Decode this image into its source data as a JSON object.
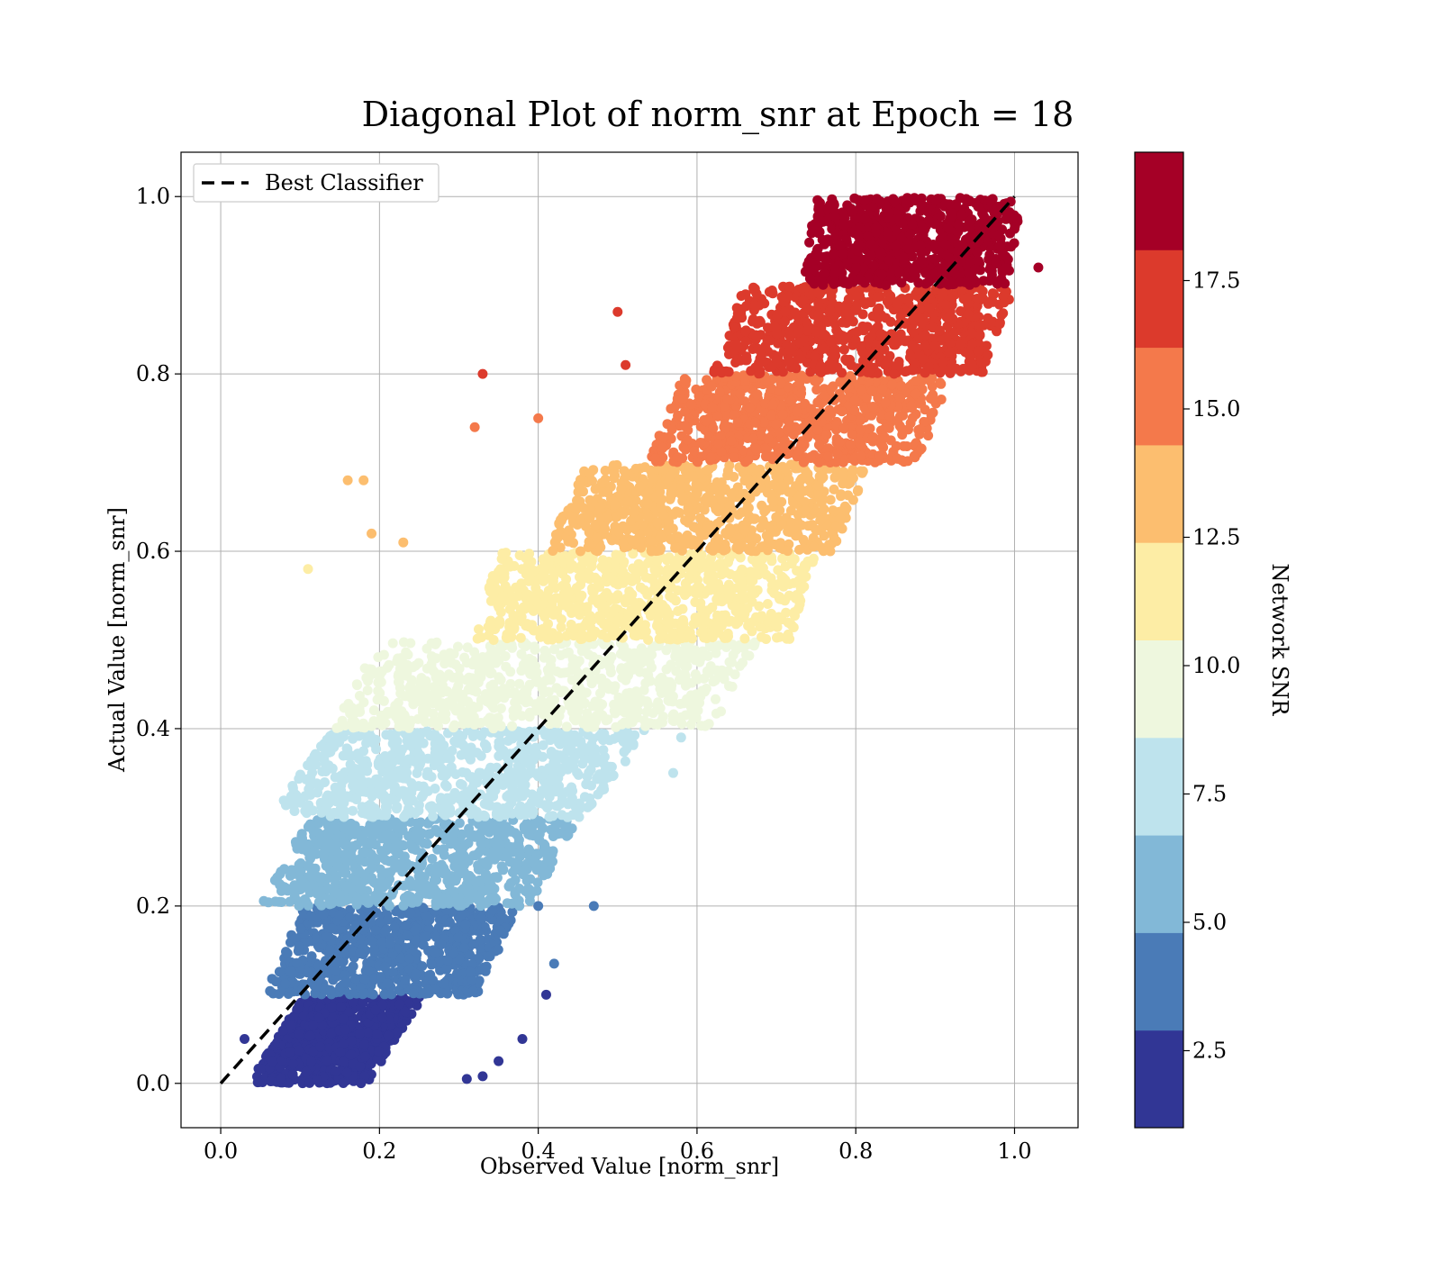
{
  "chart_data": {
    "type": "scatter",
    "title": "Diagonal Plot of norm_snr at Epoch = 18",
    "xlabel": "Observed Value [norm_snr]",
    "ylabel": "Actual Value [norm_snr]",
    "xlim": [
      -0.05,
      1.08
    ],
    "ylim": [
      -0.05,
      1.05
    ],
    "xticks": [
      0.0,
      0.2,
      0.4,
      0.6,
      0.8,
      1.0
    ],
    "yticks": [
      0.0,
      0.2,
      0.4,
      0.6,
      0.8,
      1.0
    ],
    "xtick_labels": [
      "0.0",
      "0.2",
      "0.4",
      "0.6",
      "0.8",
      "1.0"
    ],
    "ytick_labels": [
      "0.0",
      "0.2",
      "0.4",
      "0.6",
      "0.8",
      "1.0"
    ],
    "grid": true,
    "legend": {
      "position": "top-left",
      "entries": [
        "Best Classifier"
      ]
    },
    "reference_line": {
      "label": "Best Classifier",
      "x": [
        0.0,
        1.0
      ],
      "y": [
        0.0,
        1.0
      ],
      "style": "dashed",
      "color": "#000000"
    },
    "colorbar": {
      "label": "Network SNR",
      "range": [
        1.0,
        20.0
      ],
      "ticks": [
        2.5,
        5.0,
        7.5,
        10.0,
        12.5,
        15.0,
        17.5
      ],
      "tick_labels": [
        "2.5",
        "5.0",
        "7.5",
        "10.0",
        "12.5",
        "15.0",
        "17.5"
      ],
      "levels": 10,
      "colors": [
        "#313695",
        "#4a7bb7",
        "#82b8d7",
        "#bee3ed",
        "#eef7de",
        "#fdeda5",
        "#fcbe6f",
        "#f4794b",
        "#dc3a2c",
        "#a50026"
      ]
    },
    "bands": [
      {
        "snr": 1.9,
        "y_range": [
          0.0,
          0.1
        ],
        "x_center_at_bottom": 0.11,
        "x_center_at_top": 0.18,
        "half_width": 0.075,
        "color": "#313695"
      },
      {
        "snr": 3.8,
        "y_range": [
          0.1,
          0.2
        ],
        "x_center_at_bottom": 0.19,
        "x_center_at_top": 0.24,
        "half_width": 0.135,
        "color": "#4a7bb7"
      },
      {
        "snr": 5.7,
        "y_range": [
          0.2,
          0.3
        ],
        "x_center_at_bottom": 0.22,
        "x_center_at_top": 0.28,
        "half_width": 0.17,
        "color": "#82b8d7"
      },
      {
        "snr": 7.6,
        "y_range": [
          0.3,
          0.4
        ],
        "x_center_at_bottom": 0.26,
        "x_center_at_top": 0.34,
        "half_width": 0.2,
        "color": "#bee3ed"
      },
      {
        "snr": 9.5,
        "y_range": [
          0.4,
          0.5
        ],
        "x_center_at_bottom": 0.38,
        "x_center_at_top": 0.44,
        "half_width": 0.24,
        "color": "#eef7de"
      },
      {
        "snr": 11.4,
        "y_range": [
          0.5,
          0.6
        ],
        "x_center_at_bottom": 0.52,
        "x_center_at_top": 0.55,
        "half_width": 0.2,
        "color": "#fdeda5"
      },
      {
        "snr": 13.3,
        "y_range": [
          0.6,
          0.7
        ],
        "x_center_at_bottom": 0.59,
        "x_center_at_top": 0.64,
        "half_width": 0.18,
        "color": "#fcbe6f"
      },
      {
        "snr": 15.2,
        "y_range": [
          0.7,
          0.8
        ],
        "x_center_at_bottom": 0.71,
        "x_center_at_top": 0.75,
        "half_width": 0.17,
        "color": "#f4794b"
      },
      {
        "snr": 17.1,
        "y_range": [
          0.8,
          0.9
        ],
        "x_center_at_bottom": 0.79,
        "x_center_at_top": 0.83,
        "half_width": 0.17,
        "color": "#dc3a2c"
      },
      {
        "snr": 19.0,
        "y_range": [
          0.9,
          1.0
        ],
        "x_center_at_bottom": 0.86,
        "x_center_at_top": 0.88,
        "half_width": 0.13,
        "color": "#a50026"
      }
    ],
    "outliers": [
      {
        "x": 0.33,
        "y": 0.8,
        "color": "#dc3a2c"
      },
      {
        "x": 0.32,
        "y": 0.74,
        "color": "#f4794b"
      },
      {
        "x": 0.4,
        "y": 0.75,
        "color": "#f4794b"
      },
      {
        "x": 0.5,
        "y": 0.87,
        "color": "#dc3a2c"
      },
      {
        "x": 0.51,
        "y": 0.81,
        "color": "#dc3a2c"
      },
      {
        "x": 0.16,
        "y": 0.68,
        "color": "#fcbe6f"
      },
      {
        "x": 0.18,
        "y": 0.68,
        "color": "#fcbe6f"
      },
      {
        "x": 0.19,
        "y": 0.62,
        "color": "#fcbe6f"
      },
      {
        "x": 0.23,
        "y": 0.61,
        "color": "#fcbe6f"
      },
      {
        "x": 0.11,
        "y": 0.58,
        "color": "#fdeda5"
      },
      {
        "x": 0.47,
        "y": 0.2,
        "color": "#4a7bb7"
      },
      {
        "x": 0.4,
        "y": 0.2,
        "color": "#4a7bb7"
      },
      {
        "x": 0.42,
        "y": 0.135,
        "color": "#4a7bb7"
      },
      {
        "x": 0.41,
        "y": 0.1,
        "color": "#313695"
      },
      {
        "x": 0.38,
        "y": 0.05,
        "color": "#313695"
      },
      {
        "x": 0.35,
        "y": 0.025,
        "color": "#313695"
      },
      {
        "x": 0.33,
        "y": 0.008,
        "color": "#313695"
      },
      {
        "x": 0.31,
        "y": 0.005,
        "color": "#313695"
      },
      {
        "x": 1.03,
        "y": 0.92,
        "color": "#a50026"
      },
      {
        "x": 0.58,
        "y": 0.39,
        "color": "#bee3ed"
      },
      {
        "x": 0.57,
        "y": 0.35,
        "color": "#bee3ed"
      },
      {
        "x": 0.03,
        "y": 0.05,
        "color": "#313695"
      }
    ]
  }
}
